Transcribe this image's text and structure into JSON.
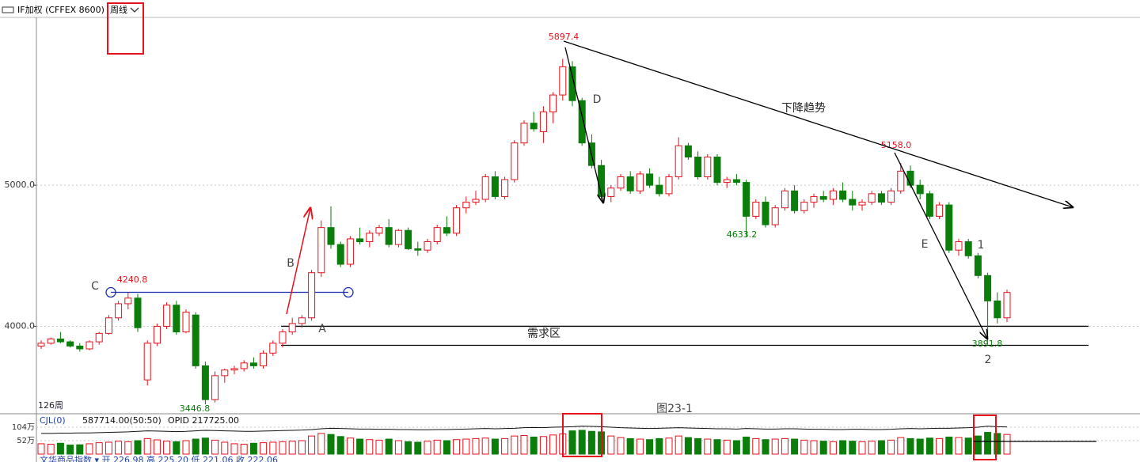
{
  "header": {
    "symbol": "IF加权 (CFFEX 8600)",
    "period": "周线"
  },
  "chart_data": {
    "type": "candlestick",
    "ylim": [
      3380,
      6190
    ],
    "yticks": [
      {
        "value": 4000,
        "label": "4000.0"
      },
      {
        "value": 5000,
        "label": "5000.0"
      }
    ],
    "grid": true,
    "up_color": "#e8101a",
    "down_color": "#0a7d0a",
    "ohlc": [
      [
        3860,
        3900,
        3840,
        3880
      ],
      [
        3880,
        3920,
        3870,
        3910
      ],
      [
        3910,
        3960,
        3880,
        3890
      ],
      [
        3890,
        3900,
        3850,
        3860
      ],
      [
        3860,
        3880,
        3820,
        3840
      ],
      [
        3840,
        3900,
        3830,
        3890
      ],
      [
        3890,
        3960,
        3870,
        3950
      ],
      [
        3950,
        4080,
        3940,
        4060
      ],
      [
        4060,
        4180,
        4040,
        4160
      ],
      [
        4160,
        4240.8,
        4120,
        4200
      ],
      [
        4200,
        4230,
        3960,
        3990
      ],
      [
        3620,
        3900,
        3580,
        3880
      ],
      [
        3880,
        4020,
        3860,
        4000
      ],
      [
        4000,
        4170,
        3980,
        4150
      ],
      [
        4150,
        4180,
        3940,
        3960
      ],
      [
        3960,
        4120,
        3950,
        4100
      ],
      [
        4080,
        4100,
        3700,
        3720
      ],
      [
        3720,
        3750,
        3446.8,
        3480
      ],
      [
        3480,
        3680,
        3460,
        3650
      ],
      [
        3650,
        3700,
        3600,
        3690
      ],
      [
        3690,
        3720,
        3660,
        3700
      ],
      [
        3700,
        3760,
        3680,
        3740
      ],
      [
        3740,
        3780,
        3700,
        3720
      ],
      [
        3720,
        3830,
        3700,
        3810
      ],
      [
        3810,
        3900,
        3790,
        3880
      ],
      [
        3880,
        3980,
        3850,
        3960
      ],
      [
        3960,
        4060,
        3940,
        4020
      ],
      [
        4020,
        4080,
        3990,
        4060
      ],
      [
        4060,
        4400,
        4040,
        4380
      ],
      [
        4380,
        4750,
        4350,
        4700
      ],
      [
        4700,
        4850,
        4550,
        4580
      ],
      [
        4580,
        4600,
        4420,
        4440
      ],
      [
        4440,
        4640,
        4420,
        4620
      ],
      [
        4620,
        4700,
        4580,
        4600
      ],
      [
        4600,
        4680,
        4560,
        4660
      ],
      [
        4660,
        4720,
        4640,
        4700
      ],
      [
        4700,
        4760,
        4560,
        4580
      ],
      [
        4580,
        4690,
        4560,
        4680
      ],
      [
        4680,
        4700,
        4540,
        4550
      ],
      [
        4550,
        4600,
        4500,
        4540
      ],
      [
        4540,
        4620,
        4520,
        4600
      ],
      [
        4600,
        4720,
        4580,
        4700
      ],
      [
        4700,
        4780,
        4640,
        4660
      ],
      [
        4660,
        4860,
        4640,
        4840
      ],
      [
        4840,
        4920,
        4800,
        4880
      ],
      [
        4880,
        4960,
        4860,
        4900
      ],
      [
        4900,
        5080,
        4880,
        5060
      ],
      [
        5060,
        5100,
        4900,
        4920
      ],
      [
        4920,
        5060,
        4900,
        5040
      ],
      [
        5040,
        5320,
        5020,
        5300
      ],
      [
        5300,
        5460,
        5280,
        5440
      ],
      [
        5440,
        5520,
        5380,
        5400
      ],
      [
        5380,
        5560,
        5300,
        5520
      ],
      [
        5520,
        5660,
        5440,
        5640
      ],
      [
        5640,
        5897.4,
        5600,
        5840
      ],
      [
        5840,
        5880,
        5560,
        5600
      ],
      [
        5600,
        5620,
        5280,
        5300
      ],
      [
        5300,
        5360,
        5120,
        5140
      ],
      [
        5140,
        5180,
        4900,
        4920
      ],
      [
        4920,
        5000,
        4880,
        4980
      ],
      [
        4980,
        5080,
        4960,
        5060
      ],
      [
        5060,
        5100,
        4940,
        4960
      ],
      [
        4960,
        5100,
        4940,
        5080
      ],
      [
        5080,
        5120,
        4980,
        5000
      ],
      [
        5000,
        5060,
        4920,
        4940
      ],
      [
        4940,
        5080,
        4920,
        5060
      ],
      [
        5060,
        5340,
        5040,
        5280
      ],
      [
        5280,
        5300,
        5180,
        5200
      ],
      [
        5200,
        5240,
        5040,
        5060
      ],
      [
        5060,
        5220,
        5040,
        5200
      ],
      [
        5200,
        5220,
        5000,
        5020
      ],
      [
        5020,
        5060,
        4980,
        5040
      ],
      [
        5040,
        5080,
        5000,
        5020
      ],
      [
        5020,
        5040,
        4633.2,
        4780
      ],
      [
        4780,
        4900,
        4760,
        4880
      ],
      [
        4880,
        4920,
        4700,
        4720
      ],
      [
        4720,
        4860,
        4700,
        4840
      ],
      [
        4840,
        4980,
        4820,
        4960
      ],
      [
        4960,
        5000,
        4800,
        4820
      ],
      [
        4820,
        4900,
        4800,
        4880
      ],
      [
        4880,
        4940,
        4840,
        4920
      ],
      [
        4920,
        4960,
        4880,
        4900
      ],
      [
        4900,
        4980,
        4860,
        4960
      ],
      [
        4960,
        5020,
        4880,
        4900
      ],
      [
        4900,
        4960,
        4820,
        4860
      ],
      [
        4860,
        4900,
        4820,
        4880
      ],
      [
        4880,
        4960,
        4860,
        4940
      ],
      [
        4940,
        4960,
        4860,
        4880
      ],
      [
        4880,
        4980,
        4860,
        4960
      ],
      [
        4960,
        5158.0,
        4940,
        5100
      ],
      [
        5100,
        5140,
        4980,
        5000
      ],
      [
        5000,
        5040,
        4900,
        4940
      ],
      [
        4940,
        4960,
        4760,
        4780
      ],
      [
        4780,
        4880,
        4760,
        4860
      ],
      [
        4860,
        4880,
        4520,
        4540
      ],
      [
        4540,
        4620,
        4500,
        4600
      ],
      [
        4600,
        4620,
        4480,
        4500
      ],
      [
        4500,
        4520,
        4340,
        4360
      ],
      [
        4360,
        4380,
        3891.8,
        4180
      ],
      [
        4180,
        4240,
        4020,
        4060
      ],
      [
        4060,
        4260,
        4030,
        4240
      ]
    ],
    "annotations": [
      "5897.4",
      "5158.0",
      "4633.2",
      "4240.8",
      "3446.8",
      "3891.8",
      "C",
      "B",
      "A",
      "D",
      "E",
      "1",
      "2",
      "下降趋势",
      "需求区",
      "图23-1",
      "126周"
    ],
    "demand_zone": [
      3865,
      4000
    ],
    "resistance": 4240.8,
    "volume_panel": {
      "title": "CJL(0)",
      "volume_text": "587714.00(50:50)",
      "opid_text": "OPID 217725.00",
      "ylim": [
        0,
        150
      ],
      "yticks": [
        {
          "value": 52,
          "label": "52万"
        },
        {
          "value": 104,
          "label": "104万"
        }
      ],
      "volume": [
        40,
        38,
        42,
        35,
        36,
        40,
        44,
        46,
        50,
        48,
        52,
        60,
        55,
        50,
        48,
        52,
        58,
        62,
        54,
        46,
        40,
        38,
        42,
        44,
        46,
        48,
        50,
        52,
        70,
        80,
        76,
        68,
        62,
        58,
        56,
        54,
        58,
        52,
        48,
        46,
        50,
        54,
        52,
        56,
        58,
        60,
        62,
        58,
        60,
        70,
        72,
        66,
        68,
        74,
        78,
        90,
        92,
        88,
        86,
        70,
        64,
        60,
        58,
        56,
        60,
        62,
        70,
        64,
        60,
        58,
        56,
        54,
        52,
        66,
        60,
        56,
        58,
        60,
        58,
        54,
        52,
        50,
        48,
        52,
        50,
        48,
        50,
        52,
        54,
        64,
        60,
        58,
        62,
        60,
        66,
        64,
        62,
        70,
        84,
        80,
        76
      ],
      "open_interest": [
        80,
        80,
        81,
        81,
        82,
        82,
        83,
        84,
        85,
        86,
        88,
        90,
        89,
        88,
        87,
        88,
        90,
        92,
        91,
        90,
        89,
        88,
        88,
        89,
        90,
        91,
        92,
        93,
        95,
        98,
        100,
        99,
        98,
        97,
        97,
        96,
        96,
        95,
        95,
        94,
        94,
        95,
        95,
        96,
        97,
        98,
        99,
        98,
        99,
        100,
        102,
        103,
        102,
        104,
        105,
        106,
        108,
        107,
        106,
        104,
        102,
        101,
        100,
        99,
        100,
        101,
        102,
        101,
        100,
        99,
        98,
        98,
        97,
        99,
        98,
        97,
        97,
        98,
        98,
        97,
        96,
        96,
        95,
        95,
        96,
        96,
        95,
        95,
        96,
        98,
        99,
        98,
        99,
        100,
        100,
        101,
        102,
        104,
        108,
        106,
        105
      ]
    },
    "footer": "文华商品指数 ▾   开 226.98  高 225.20  低 221.06  收 222.06"
  }
}
